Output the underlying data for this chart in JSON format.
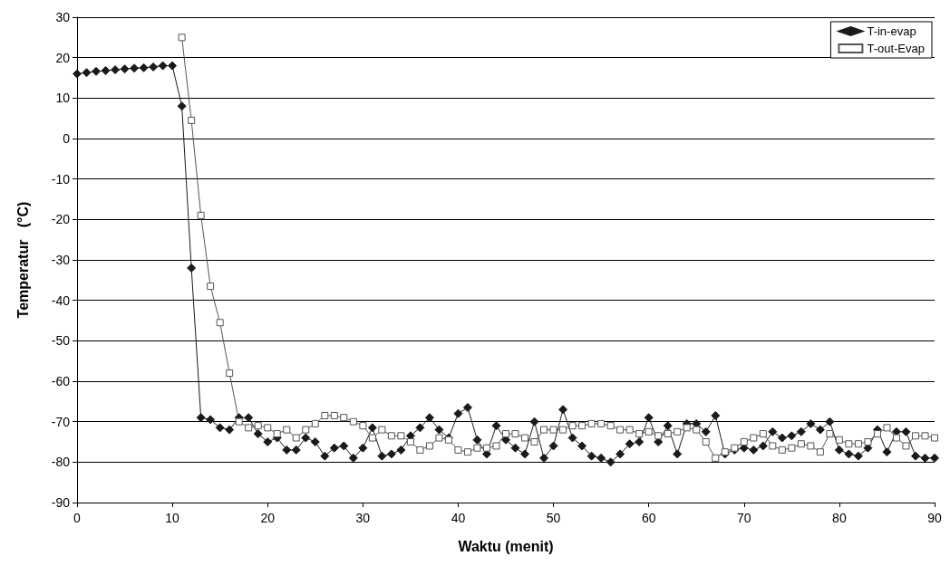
{
  "chart_data": {
    "type": "line",
    "xlabel": "Waktu (menit)",
    "ylabel": "Temperatur   (°C)",
    "xlim": [
      0,
      90
    ],
    "xticks": [
      0,
      10,
      20,
      30,
      40,
      50,
      60,
      70,
      80,
      90
    ],
    "ylim": [
      -90,
      30
    ],
    "yticks": [
      -90,
      -80,
      -70,
      -60,
      -50,
      -40,
      -30,
      -20,
      -10,
      0,
      10,
      20,
      30
    ],
    "grid": "y",
    "legend": "top right",
    "series": [
      {
        "name": "T-in-evap",
        "color": "#1a1a1a",
        "marker": "diamond",
        "x": [
          0,
          1,
          2,
          3,
          4,
          5,
          6,
          7,
          8,
          9,
          10,
          11,
          12,
          13,
          14,
          15,
          16,
          17,
          18,
          19,
          20,
          21,
          22,
          23,
          24,
          25,
          26,
          27,
          28,
          29,
          30,
          31,
          32,
          33,
          34,
          35,
          36,
          37,
          38,
          39,
          40,
          41,
          42,
          43,
          44,
          45,
          46,
          47,
          48,
          49,
          50,
          51,
          52,
          53,
          54,
          55,
          56,
          57,
          58,
          59,
          60,
          61,
          62,
          63,
          64,
          65,
          66,
          67,
          68,
          69,
          70,
          71,
          72,
          73,
          74,
          75,
          76,
          77,
          78,
          79,
          80,
          81,
          82,
          83,
          84,
          85,
          86,
          87,
          88,
          89,
          90
        ],
        "values": [
          16,
          16.3,
          16.6,
          16.8,
          17,
          17.2,
          17.4,
          17.5,
          17.7,
          18,
          18,
          8,
          -32,
          -69,
          -69.5,
          -71.5,
          -72,
          -69,
          -69,
          -73,
          -75,
          -74,
          -77,
          -77,
          -74,
          -75,
          -78.5,
          -76.5,
          -76,
          -79,
          -76.5,
          -71.5,
          -78.5,
          -78,
          -77,
          -73.5,
          -71.5,
          -69,
          -72,
          -74,
          -68,
          -66.5,
          -74.5,
          -78,
          -71,
          -74.5,
          -76.5,
          -78,
          -70,
          -79,
          -76,
          -67,
          -74,
          -76,
          -78.5,
          -79,
          -80,
          -78,
          -75.5,
          -75,
          -69,
          -75,
          -71,
          -78,
          -70.5,
          -70.5,
          -72.5,
          -68.5,
          -78,
          -77,
          -76.5,
          -77,
          -76,
          -72.5,
          -74,
          -73.5,
          -72.5,
          -70.5,
          -72,
          -70,
          -77,
          -78,
          -78.5,
          -76.5,
          -72,
          -77.5,
          -72.5,
          -72.5,
          -78.5,
          -79,
          -79
        ]
      },
      {
        "name": "T-out-Evap",
        "color": "#555555",
        "marker": "square",
        "x": [
          11,
          12,
          13,
          14,
          15,
          16,
          17,
          18,
          19,
          20,
          21,
          22,
          23,
          24,
          25,
          26,
          27,
          28,
          29,
          30,
          31,
          32,
          33,
          34,
          35,
          36,
          37,
          38,
          39,
          40,
          41,
          42,
          43,
          44,
          45,
          46,
          47,
          48,
          49,
          50,
          51,
          52,
          53,
          54,
          55,
          56,
          57,
          58,
          59,
          60,
          61,
          62,
          63,
          64,
          65,
          66,
          67,
          68,
          69,
          70,
          71,
          72,
          73,
          74,
          75,
          76,
          77,
          78,
          79,
          80,
          81,
          82,
          83,
          84,
          85,
          86,
          87,
          88,
          89,
          90
        ],
        "values": [
          25,
          4.5,
          -19,
          -36.5,
          -45.5,
          -58,
          -70,
          -71.5,
          -71,
          -71.5,
          -73,
          -72,
          -74,
          -72,
          -70.5,
          -68.5,
          -68.5,
          -69,
          -70,
          -71,
          -74,
          -72,
          -73.5,
          -73.5,
          -75,
          -77,
          -76,
          -74,
          -74.5,
          -77,
          -77.5,
          -76.5,
          -76.5,
          -76,
          -73,
          -73,
          -74,
          -75,
          -72,
          -72,
          -72,
          -71,
          -71,
          -70.5,
          -70.5,
          -71,
          -72,
          -72,
          -73,
          -72.5,
          -73.5,
          -73,
          -72.5,
          -71.5,
          -72,
          -75,
          -79,
          -77.5,
          -76.5,
          -75,
          -74,
          -73,
          -76,
          -77,
          -76.5,
          -75.5,
          -76,
          -77.5,
          -73,
          -74.5,
          -75.5,
          -75.5,
          -75,
          -73,
          -71.5,
          -74,
          -76,
          -73.5,
          -73.5,
          -74
        ]
      }
    ]
  }
}
